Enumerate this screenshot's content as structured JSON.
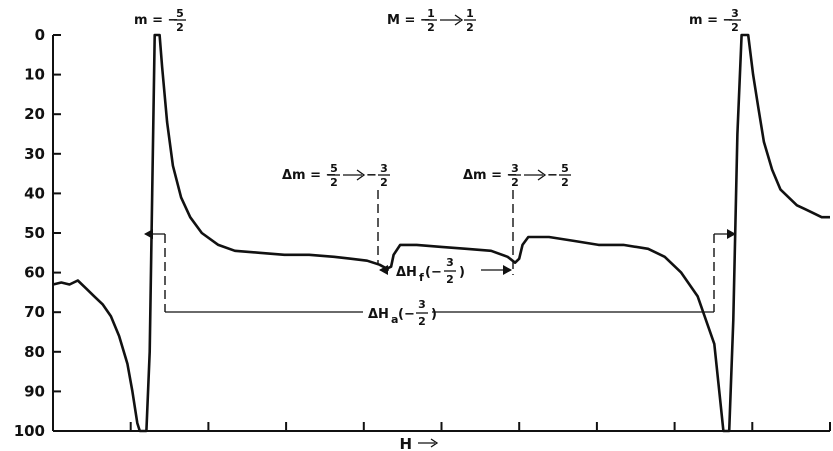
{
  "chart_data": {
    "type": "line",
    "title": "",
    "xlabel": "H",
    "ylabel": "",
    "ylim": [
      0,
      100
    ],
    "y_inverted": true,
    "yticks": [
      0,
      10,
      20,
      30,
      40,
      50,
      60,
      70,
      80,
      90,
      100
    ],
    "x_tick_count": 10,
    "grid": false,
    "series": [
      {
        "values": [
          [
            0,
            63
          ],
          [
            1,
            62.5
          ],
          [
            2,
            63
          ],
          [
            3,
            62
          ],
          [
            4,
            64
          ],
          [
            5,
            66
          ],
          [
            6,
            68
          ],
          [
            7,
            71
          ],
          [
            8,
            76
          ],
          [
            9,
            83
          ],
          [
            9.6,
            90
          ],
          [
            10.2,
            98
          ],
          [
            10.5,
            100
          ],
          [
            11.3,
            100
          ],
          [
            11.7,
            80
          ],
          [
            12,
            40
          ],
          [
            12.3,
            0
          ],
          [
            12.9,
            0
          ],
          [
            13.2,
            8
          ],
          [
            13.8,
            22
          ],
          [
            14.5,
            33
          ],
          [
            15.5,
            41
          ],
          [
            16.6,
            46
          ],
          [
            18,
            50
          ],
          [
            20,
            53
          ],
          [
            22,
            54.5
          ],
          [
            25,
            55
          ],
          [
            28,
            55.5
          ],
          [
            31,
            55.5
          ],
          [
            34,
            56
          ],
          [
            36,
            56.5
          ],
          [
            38,
            57
          ],
          [
            39.5,
            58
          ],
          [
            40.4,
            59
          ],
          [
            40.9,
            58.5
          ],
          [
            41.2,
            55.5
          ],
          [
            42,
            53
          ],
          [
            44,
            53
          ],
          [
            47,
            53.5
          ],
          [
            50,
            54
          ],
          [
            53,
            54.5
          ],
          [
            55,
            56
          ],
          [
            55.9,
            57.5
          ],
          [
            56.4,
            56.5
          ],
          [
            56.8,
            53
          ],
          [
            57.5,
            51
          ],
          [
            60,
            51
          ],
          [
            63,
            52
          ],
          [
            66,
            53
          ],
          [
            69,
            53
          ],
          [
            72,
            54
          ],
          [
            74,
            56
          ],
          [
            76,
            60
          ],
          [
            78,
            66
          ],
          [
            80,
            78
          ],
          [
            80.7,
            92
          ],
          [
            81.1,
            100
          ],
          [
            81.8,
            100
          ],
          [
            82.3,
            72
          ],
          [
            82.8,
            25
          ],
          [
            83.3,
            0
          ],
          [
            84.1,
            0
          ],
          [
            84.7,
            10
          ],
          [
            85.3,
            18
          ],
          [
            86,
            27
          ],
          [
            87,
            34
          ],
          [
            88,
            39
          ],
          [
            89,
            41
          ],
          [
            90,
            43
          ],
          [
            91,
            44
          ],
          [
            92,
            45
          ],
          [
            93,
            46
          ],
          [
            94,
            46
          ]
        ]
      }
    ],
    "annotations": {
      "m_left": {
        "lhs": "m = −",
        "num": "5",
        "den": "2"
      },
      "m_right": {
        "lhs": "m = −",
        "num": "3",
        "den": "2"
      },
      "M_top": {
        "lhs": "M = −",
        "num1": "1",
        "den1": "2",
        "num2": "1",
        "den2": "2"
      },
      "dm1": {
        "lhs": "Δm = −",
        "num1": "5",
        "den1": "2",
        "mid": "−",
        "num2": "3",
        "den2": "2"
      },
      "dm2": {
        "lhs": "Δm = −",
        "num1": "3",
        "den1": "2",
        "mid": "−",
        "num2": "5",
        "den2": "2"
      },
      "dHf": {
        "lhs": "ΔH",
        "sub": "f",
        "open": "(−",
        "num": "3",
        "den": "2",
        "close": ")"
      },
      "dHa": {
        "lhs": "ΔH",
        "sub": "a",
        "open": "(−",
        "num": "3",
        "den": "2",
        "close": ")"
      }
    }
  }
}
